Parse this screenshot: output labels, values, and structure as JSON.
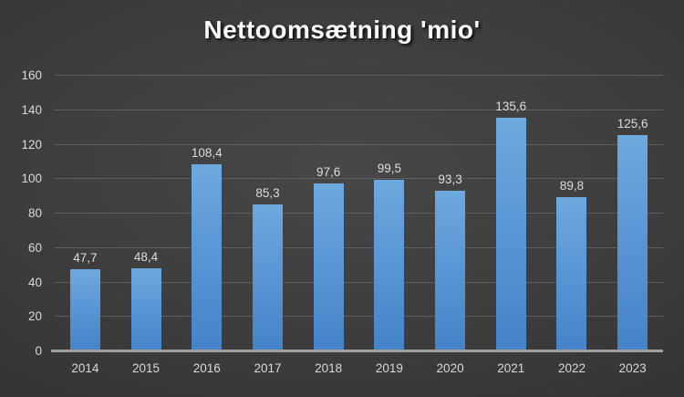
{
  "title": "Nettoomsætning 'mio'",
  "chart_data": {
    "type": "bar",
    "title": "Nettoomsætning 'mio'",
    "categories": [
      "2014",
      "2015",
      "2016",
      "2017",
      "2018",
      "2019",
      "2020",
      "2021",
      "2022",
      "2023"
    ],
    "values": [
      47.7,
      48.4,
      108.4,
      85.3,
      97.6,
      99.5,
      93.3,
      135.6,
      89.8,
      125.6
    ],
    "value_labels": [
      "47,7",
      "48,4",
      "108,4",
      "85,3",
      "97,6",
      "99,5",
      "93,3",
      "135,6",
      "89,8",
      "125,6"
    ],
    "xlabel": "",
    "ylabel": "",
    "ylim": [
      0,
      160
    ],
    "y_ticks": [
      0,
      20,
      40,
      60,
      80,
      100,
      120,
      140,
      160
    ],
    "grid": true,
    "legend": false
  },
  "colors": {
    "background_center": "#474747",
    "background_edge": "#262626",
    "bar_top": "#6CA9DF",
    "bar_bottom": "#4483C8",
    "gridline": "#5d5d5d",
    "axis_line": "#a0a0a0",
    "tick_label": "#d9d9d9",
    "data_label": "#dcdcdc",
    "title_text": "#fbfbfb"
  }
}
